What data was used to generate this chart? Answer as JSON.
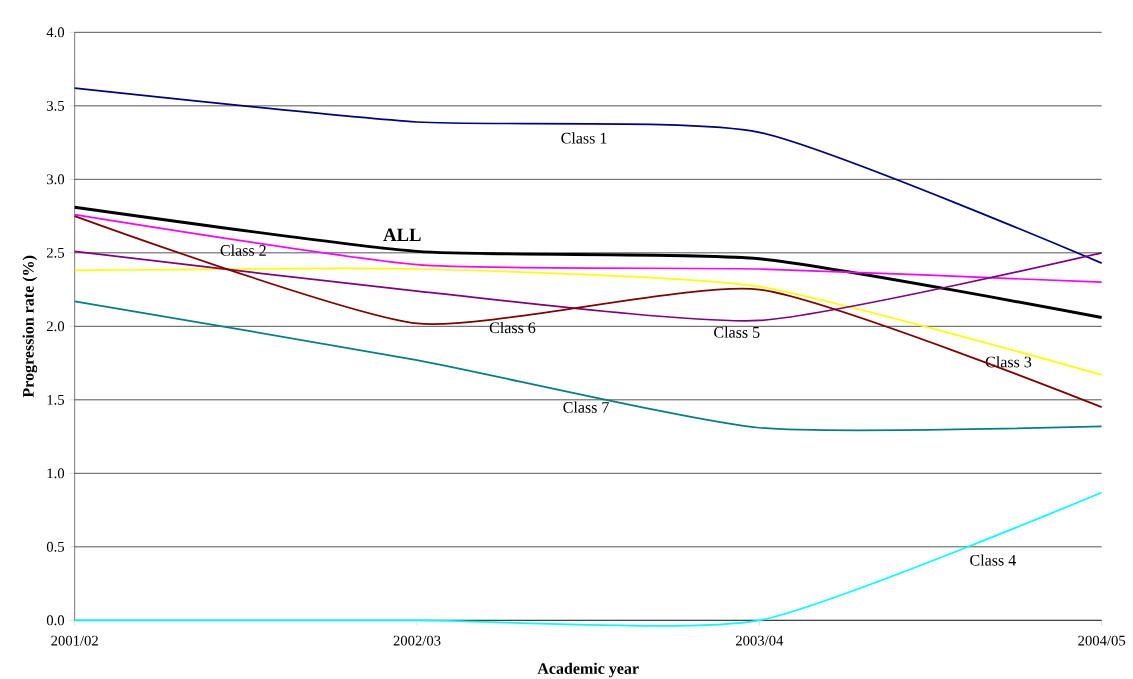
{
  "chart_data": {
    "type": "line",
    "xlabel": "Academic year",
    "ylabel": "Progression rate (%)",
    "categories": [
      "2001/02",
      "2002/03",
      "2003/04",
      "2004/05"
    ],
    "series": [
      {
        "name": "Class 1",
        "color": "#000080",
        "values": [
          3.62,
          3.39,
          3.32,
          2.43
        ]
      },
      {
        "name": "ALL",
        "color": "#000000",
        "values": [
          2.81,
          2.51,
          2.46,
          2.06
        ]
      },
      {
        "name": "Class 2",
        "color": "#ff00ff",
        "values": [
          2.76,
          2.42,
          2.39,
          2.3
        ]
      },
      {
        "name": "Class 3",
        "color": "#ffff00",
        "values": [
          2.38,
          2.39,
          2.27,
          1.67
        ]
      },
      {
        "name": "Class 4",
        "color": "#00ffff",
        "values": [
          0,
          0,
          0,
          0.87
        ]
      },
      {
        "name": "Class 5",
        "color": "#800080",
        "values": [
          2.51,
          2.24,
          2.04,
          2.5
        ]
      },
      {
        "name": "Class 6",
        "color": "#800000",
        "values": [
          2.75,
          2.02,
          2.25,
          1.45
        ]
      },
      {
        "name": "Class 7",
        "color": "#008080",
        "values": [
          2.17,
          1.77,
          1.31,
          1.32
        ]
      }
    ],
    "ylim": [
      0,
      4
    ],
    "yticks": [
      {
        "value": 0,
        "label": "0.0"
      },
      {
        "value": 0.5,
        "label": "0.5"
      },
      {
        "value": 1,
        "label": "1.0"
      },
      {
        "value": 1.5,
        "label": "1.5"
      },
      {
        "value": 2,
        "label": "2.0"
      },
      {
        "value": 2.5,
        "label": "2.5"
      },
      {
        "value": 3,
        "label": "3.0"
      },
      {
        "value": 3.5,
        "label": "3.5"
      },
      {
        "value": 4,
        "label": "4.0"
      }
    ],
    "grid": "y",
    "marker": "none",
    "line_style": "solid"
  }
}
